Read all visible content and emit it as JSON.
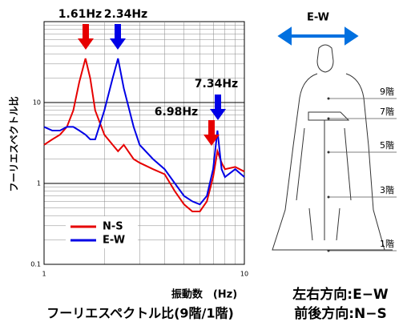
{
  "chart_data": {
    "type": "line",
    "y_label": "フーリエスペクトル比",
    "x_label": "振動数　(Hz)",
    "x": [
      1,
      1.1,
      1.2,
      1.3,
      1.4,
      1.5,
      1.61,
      1.7,
      1.8,
      2.0,
      2.2,
      2.34,
      2.5,
      2.8,
      3.0,
      3.5,
      4.0,
      4.5,
      5.0,
      5.5,
      6.0,
      6.5,
      6.98,
      7.34,
      7.7,
      8.0,
      9.0,
      10
    ],
    "series": [
      {
        "name": "N-S",
        "color": "#e60000",
        "values": [
          3,
          3.5,
          4,
          5,
          8,
          18,
          35,
          20,
          8,
          4,
          3,
          2.5,
          3,
          2,
          1.8,
          1.5,
          1.3,
          0.8,
          0.55,
          0.45,
          0.45,
          0.6,
          1.2,
          2.5,
          1.8,
          1.5,
          1.6,
          1.4
        ]
      },
      {
        "name": "E-W",
        "color": "#0000e6",
        "values": [
          5,
          4.5,
          4.5,
          5,
          5,
          4.5,
          4,
          3.5,
          3.5,
          8,
          20,
          35,
          15,
          5,
          3,
          2,
          1.5,
          1,
          0.7,
          0.6,
          0.55,
          0.7,
          1.5,
          4.5,
          1.5,
          1.2,
          1.5,
          1.2
        ]
      }
    ],
    "xlog": true,
    "ylog": true,
    "xlim": [
      1,
      10
    ],
    "ylim": [
      0.1,
      100
    ],
    "xticks": [
      1,
      10
    ],
    "yticks": [
      0.1,
      1,
      10
    ],
    "grid": true,
    "legend": "lower left",
    "annotations": [
      "1.61Hz",
      "2.34Hz",
      "6.98Hz",
      "7.34Hz"
    ]
  },
  "diagram": {
    "direction": "E-W",
    "floors": [
      "9階",
      "7階",
      "5階",
      "3階",
      "1階"
    ]
  },
  "captions": {
    "left": "フーリエスペクトル比(9階/1階)",
    "right_top": "左右方向:E−W",
    "right_bottom": "前後方向:N−S"
  }
}
